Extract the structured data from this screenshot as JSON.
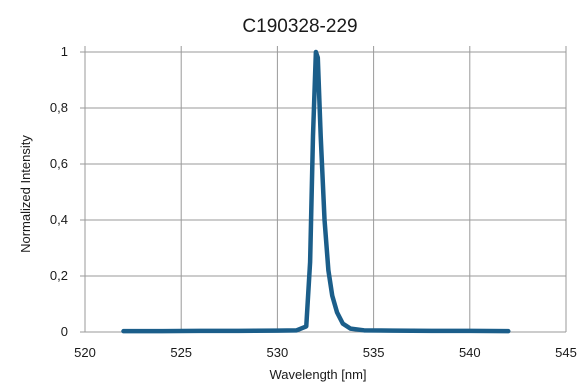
{
  "chart_data": {
    "type": "line",
    "title": "C190328-229",
    "xlabel": "Wavelength [nm]",
    "ylabel": "Normalized Intensity",
    "xlim": [
      520,
      545
    ],
    "ylim": [
      0,
      1
    ],
    "x_ticks": [
      "520",
      "525",
      "530",
      "535",
      "540",
      "545"
    ],
    "y_ticks": [
      "0",
      "0,2",
      "0,4",
      "0,6",
      "0,8",
      "1"
    ],
    "grid": true,
    "legend": "none",
    "series_color": "#1b5e8a",
    "series": [
      {
        "x": [
          522,
          524,
          526,
          528,
          530,
          531,
          531.5,
          531.7,
          531.85,
          532.0,
          532.1,
          532.25,
          532.45,
          532.65,
          532.85,
          533.1,
          533.4,
          533.8,
          534.5,
          536,
          538,
          540,
          542
        ],
        "y": [
          0.003,
          0.003,
          0.004,
          0.004,
          0.005,
          0.006,
          0.02,
          0.25,
          0.7,
          1.0,
          0.98,
          0.7,
          0.4,
          0.22,
          0.13,
          0.07,
          0.03,
          0.012,
          0.006,
          0.005,
          0.004,
          0.004,
          0.003
        ]
      }
    ]
  }
}
